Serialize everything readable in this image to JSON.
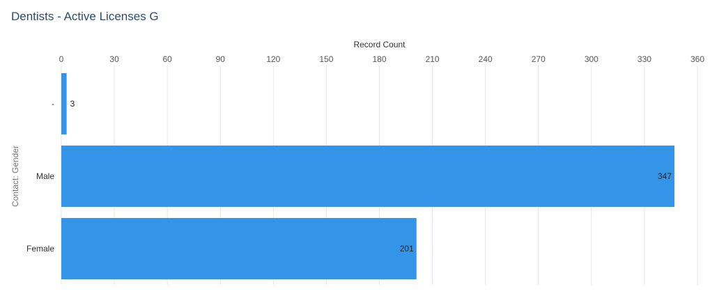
{
  "chart_data": {
    "type": "bar",
    "orientation": "horizontal",
    "title": "Dentists - Active Licenses G",
    "xlabel": "Record Count",
    "ylabel": "Contact: Gender",
    "categories": [
      "-",
      "Male",
      "Female"
    ],
    "values": [
      3,
      347,
      201
    ],
    "data_labels": [
      "3",
      "347",
      "201"
    ],
    "xlim": [
      0,
      360
    ],
    "x_ticks": [
      0,
      30,
      60,
      90,
      120,
      150,
      180,
      210,
      240,
      270,
      300,
      330,
      360
    ],
    "x_axis_position": "top",
    "grid": true,
    "legend": "none",
    "bar_color": "#3394e8"
  }
}
